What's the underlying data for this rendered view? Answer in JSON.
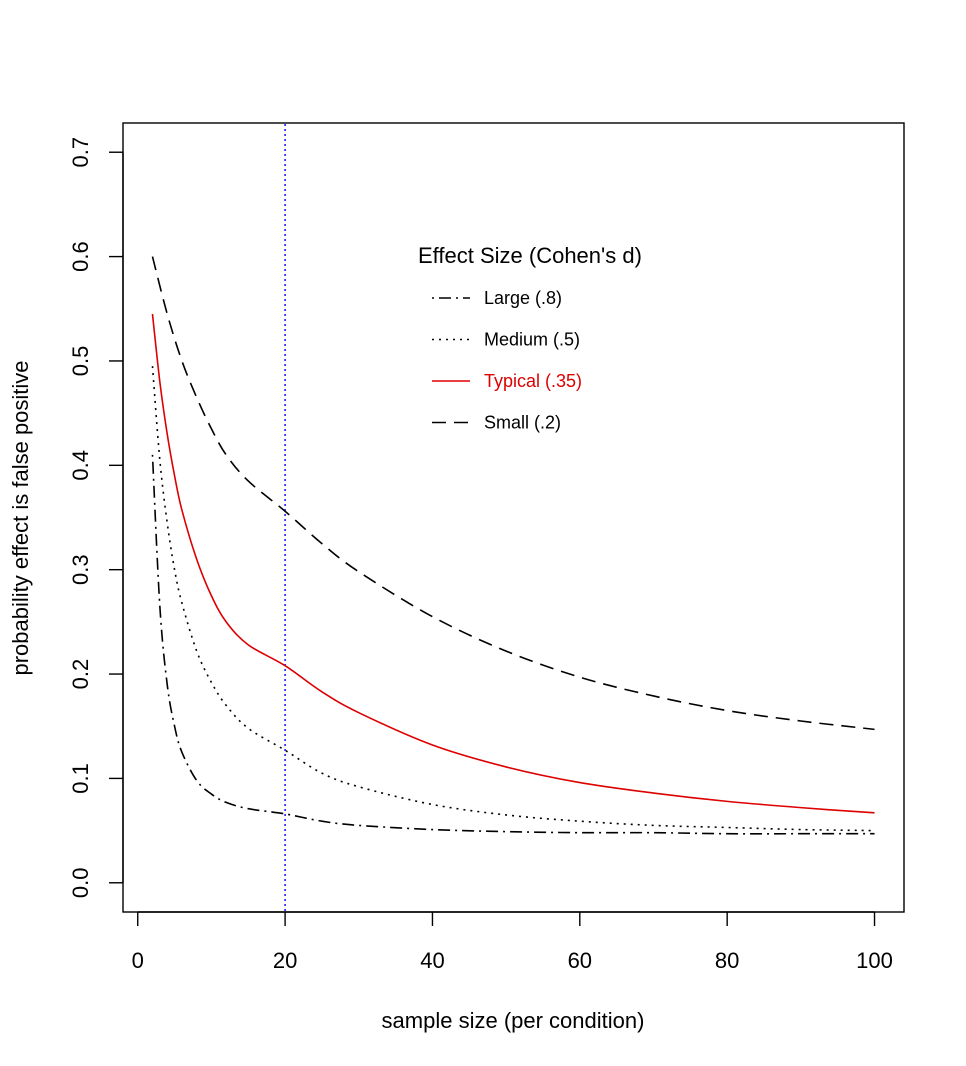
{
  "chart_data": {
    "type": "line",
    "title": "",
    "xlabel": "sample size (per condition)",
    "ylabel": "probability effect is false positive",
    "xlim": [
      -2,
      104
    ],
    "ylim": [
      -0.028,
      0.728
    ],
    "x_ticks": [
      0,
      20,
      40,
      60,
      80,
      100
    ],
    "y_ticks": [
      0.0,
      0.1,
      0.2,
      0.3,
      0.4,
      0.5,
      0.6,
      0.7
    ],
    "x_tick_labels": [
      "0",
      "20",
      "40",
      "60",
      "80",
      "100"
    ],
    "y_tick_labels": [
      "0.0",
      "0.1",
      "0.2",
      "0.3",
      "0.4",
      "0.5",
      "0.6",
      "0.7"
    ],
    "grid": false,
    "reference_line": {
      "orientation": "vertical",
      "x": 20,
      "color": "#0000ff",
      "style": "dotted"
    },
    "legend": {
      "title": "Effect Size (Cohen's d)",
      "placement": "top-center"
    },
    "series": [
      {
        "name": "Large (.8)",
        "color": "#000000",
        "style": "dashdot",
        "x": [
          2,
          3,
          4,
          5,
          6,
          8,
          10,
          12,
          15,
          20,
          25,
          30,
          40,
          50,
          60,
          70,
          80,
          90,
          100
        ],
        "values": [
          0.41,
          0.265,
          0.19,
          0.15,
          0.125,
          0.098,
          0.085,
          0.077,
          0.071,
          0.066,
          0.059,
          0.055,
          0.051,
          0.049,
          0.048,
          0.048,
          0.047,
          0.047,
          0.047
        ]
      },
      {
        "name": "Medium (.5)",
        "color": "#000000",
        "style": "dotted",
        "x": [
          2,
          3,
          4,
          5,
          6,
          8,
          10,
          12,
          15,
          20,
          25,
          30,
          40,
          50,
          60,
          70,
          80,
          90,
          100
        ],
        "values": [
          0.495,
          0.405,
          0.345,
          0.3,
          0.268,
          0.222,
          0.192,
          0.17,
          0.148,
          0.127,
          0.105,
          0.092,
          0.075,
          0.065,
          0.059,
          0.055,
          0.053,
          0.051,
          0.05
        ]
      },
      {
        "name": "Typical (.35)",
        "color": "#dd0000",
        "style": "solid",
        "x": [
          2,
          3,
          4,
          5,
          6,
          8,
          10,
          12,
          15,
          20,
          25,
          30,
          40,
          50,
          60,
          70,
          80,
          90,
          100
        ],
        "values": [
          0.545,
          0.48,
          0.43,
          0.39,
          0.357,
          0.31,
          0.275,
          0.25,
          0.228,
          0.208,
          0.183,
          0.163,
          0.132,
          0.111,
          0.096,
          0.086,
          0.078,
          0.072,
          0.067
        ]
      },
      {
        "name": "Small (.2)",
        "color": "#000000",
        "style": "dashed",
        "x": [
          2,
          4,
          6,
          8,
          10,
          12,
          15,
          20,
          25,
          30,
          40,
          50,
          60,
          70,
          80,
          90,
          100
        ],
        "values": [
          0.6,
          0.545,
          0.5,
          0.465,
          0.435,
          0.41,
          0.385,
          0.356,
          0.325,
          0.298,
          0.255,
          0.222,
          0.197,
          0.179,
          0.165,
          0.155,
          0.147
        ]
      }
    ]
  }
}
